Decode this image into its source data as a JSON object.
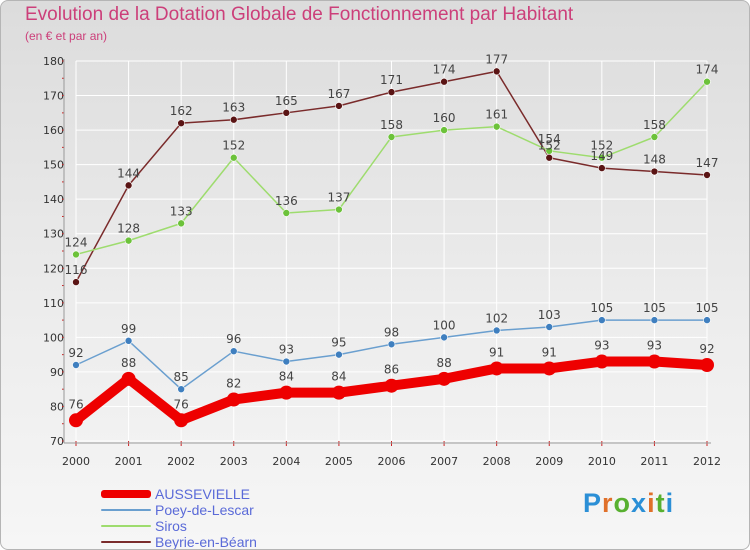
{
  "chart_data": {
    "type": "line",
    "title": "Evolution de la Dotation Globale de Fonctionnement par Habitant",
    "subtitle": "(en € et par an)",
    "xlabel": "",
    "ylabel": "",
    "x": [
      "2000",
      "2001",
      "2002",
      "2003",
      "2004",
      "2005",
      "2006",
      "2007",
      "2008",
      "2009",
      "2010",
      "2011",
      "2012"
    ],
    "ylim": [
      70,
      180
    ],
    "yticks": [
      70,
      80,
      90,
      100,
      110,
      120,
      130,
      140,
      150,
      160,
      170,
      180
    ],
    "legend_position": "bottom-left",
    "series": [
      {
        "name": "Beyrie-en-Béarn",
        "color": "#7a2b2b",
        "marker": "#5a1414",
        "values": [
          116,
          144,
          162,
          163,
          165,
          167,
          171,
          174,
          177,
          152,
          149,
          148,
          147
        ]
      },
      {
        "name": "Siros",
        "color": "#9edc6e",
        "marker": "#6cc23a",
        "values": [
          124,
          128,
          133,
          152,
          136,
          137,
          158,
          160,
          161,
          154,
          152,
          158,
          174
        ]
      },
      {
        "name": "Poey-de-Lescar",
        "color": "#6a9fcf",
        "marker": "#3f7fbf",
        "values": [
          92,
          99,
          85,
          96,
          93,
          95,
          98,
          100,
          102,
          103,
          105,
          105,
          105
        ]
      },
      {
        "name": "AUSSEVIELLE",
        "color": "#ee0000",
        "marker": "#ee0000",
        "values": [
          76,
          88,
          76,
          82,
          84,
          84,
          86,
          88,
          91,
          91,
          93,
          93,
          92
        ]
      }
    ]
  },
  "legend": [
    {
      "label": "AUSSEVIELLE",
      "color": "#ee0000"
    },
    {
      "label": "Poey-de-Lescar",
      "color": "#6a9fcf"
    },
    {
      "label": "Siros",
      "color": "#9edc6e"
    },
    {
      "label": "Beyrie-en-Béarn",
      "color": "#7a2b2b"
    }
  ],
  "logo": {
    "letters": [
      "P",
      "r",
      "o",
      "x",
      "i",
      "t",
      "i"
    ],
    "colors": [
      "#2b8fd6",
      "#e0702a",
      "#58b030",
      "#2b8fd6",
      "#e0702a",
      "#58b030",
      "#2b8fd6"
    ]
  }
}
